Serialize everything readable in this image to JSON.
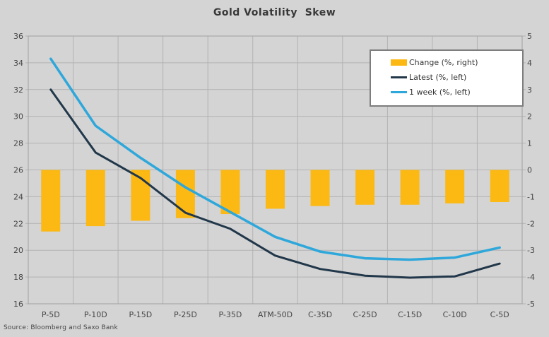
{
  "title": "Gold Volatility  Skew",
  "source": "Source: Bloomberg and Saxo Bank",
  "chart_data": {
    "type": "bar",
    "subtype": "combo-bar-line-dual-axis",
    "title": "Gold Volatility  Skew",
    "categories": [
      "P-5D",
      "P-10D",
      "P-15D",
      "P-25D",
      "P-35D",
      "ATM-50D",
      "C-35D",
      "C-25D",
      "C-15D",
      "C-10D",
      "C-5D"
    ],
    "series": [
      {
        "name": "Change (%, right)",
        "render": "bar",
        "axis": "right",
        "color": "#FCB914",
        "values": [
          -2.3,
          -2.1,
          -1.9,
          -1.8,
          -1.65,
          -1.45,
          -1.35,
          -1.3,
          -1.3,
          -1.25,
          -1.2
        ]
      },
      {
        "name": "Latest (%, left)",
        "render": "line",
        "axis": "left",
        "color": "#21374A",
        "values": [
          32.0,
          27.3,
          25.4,
          22.8,
          21.6,
          19.6,
          18.6,
          18.1,
          17.95,
          18.05,
          19.0
        ]
      },
      {
        "name": "1 week (%, left)",
        "render": "line",
        "axis": "left",
        "color": "#2EA7DB",
        "values": [
          34.3,
          29.3,
          26.9,
          24.7,
          22.85,
          21.0,
          19.9,
          19.4,
          19.3,
          19.45,
          20.2
        ]
      }
    ],
    "left_axis": {
      "min": 16,
      "max": 36,
      "step": 2,
      "ticks": [
        "36",
        "34",
        "32",
        "30",
        "28",
        "26",
        "24",
        "22",
        "20",
        "18",
        "16"
      ]
    },
    "right_axis": {
      "min": -5,
      "max": 5,
      "step": 1,
      "ticks": [
        "5",
        "4",
        "3",
        "2",
        "1",
        "0",
        "-1",
        "-2",
        "-3",
        "-4",
        "-5"
      ]
    },
    "grid": true,
    "legend_position": "top-right",
    "colors": {
      "background": "#d4d4d4",
      "gridline": "#b2b2b2",
      "plot_border": "#a0a0a0",
      "axis_text": "#454545",
      "legend_border": "#7d7d7d",
      "legend_background": "#ffffff"
    }
  }
}
